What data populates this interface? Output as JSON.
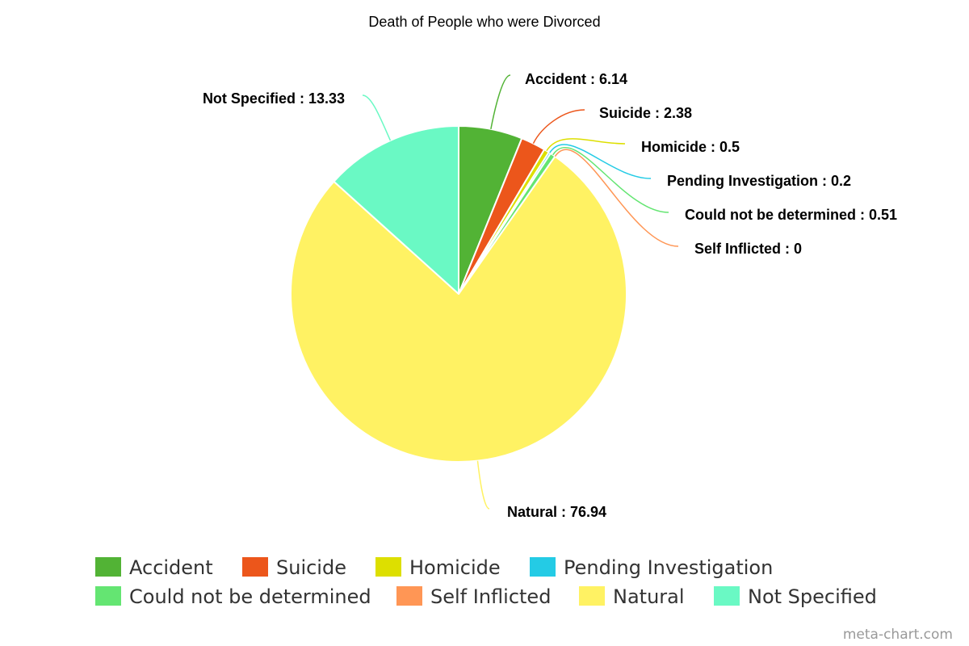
{
  "chart_data": {
    "type": "pie",
    "title": "Death of People who were Divorced",
    "categories": [
      "Accident",
      "Suicide",
      "Homicide",
      "Pending Investigation",
      "Could not be determined",
      "Self Inflicted",
      "Natural",
      "Not Specified"
    ],
    "values": [
      6.14,
      2.38,
      0.5,
      0.2,
      0.51,
      0,
      76.94,
      13.33
    ],
    "labels": [
      "Accident : 6.14",
      "Suicide : 2.38",
      "Homicide : 0.5",
      "Pending Investigation : 0.2",
      "Could not be determined : 0.51",
      "Self Inflicted : 0",
      "Natural : 76.94",
      "Not Specified : 13.33"
    ],
    "colors": [
      "#52b335",
      "#ec561b",
      "#dddf00",
      "#24cbe5",
      "#64e572",
      "#ff9655",
      "#fff263",
      "#6af9c4"
    ],
    "legend": "bottom",
    "start_angle": "top-clockwise"
  },
  "credit": "meta-chart.com"
}
